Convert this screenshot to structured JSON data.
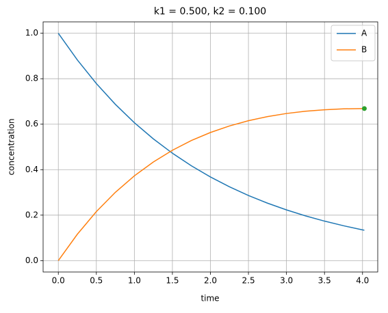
{
  "chart_data": {
    "type": "line",
    "title": "k1 = 0.500, k2 = 0.100",
    "x_label": "time",
    "y_label": "concentration",
    "x": [
      0,
      0.25,
      0.5,
      0.75,
      1.0,
      1.25,
      1.5,
      1.75,
      2.0,
      2.25,
      2.5,
      2.75,
      3.0,
      3.25,
      3.5,
      3.75,
      4.0,
      4.024
    ],
    "series": [
      {
        "name": "A",
        "color": "#1f77b4",
        "values": [
          1,
          0.8825,
          0.7788,
          0.6873,
          0.6065,
          0.5353,
          0.4724,
          0.4169,
          0.3679,
          0.3247,
          0.2865,
          0.2528,
          0.2231,
          0.1969,
          0.1738,
          0.1534,
          0.1353,
          0.1337
        ]
      },
      {
        "name": "B",
        "color": "#ff7f0e",
        "values": [
          0,
          0.116,
          0.2155,
          0.3005,
          0.3729,
          0.434,
          0.4854,
          0.5283,
          0.5635,
          0.5922,
          0.6154,
          0.6335,
          0.6471,
          0.657,
          0.6636,
          0.6674,
          0.6688,
          0.6688
        ]
      }
    ],
    "points": [
      {
        "x": 4.024,
        "y": 0.6688,
        "color": "#2ca02c"
      }
    ],
    "xlim": [
      -0.2,
      4.2
    ],
    "ylim": [
      -0.05,
      1.05
    ],
    "xticks": [
      {
        "value": 0,
        "label": "0.0"
      },
      0.5,
      {
        "value": 1,
        "label": "1.0"
      },
      1.5,
      {
        "value": 2,
        "label": "2.0"
      },
      2.5,
      {
        "value": 3,
        "label": "3.0"
      },
      3.5,
      {
        "value": 4,
        "label": "4.0"
      }
    ],
    "yticks": [
      {
        "value": 0,
        "label": "0.0"
      },
      0.2,
      0.4,
      0.6,
      0.8,
      {
        "value": 1,
        "label": "1.0"
      }
    ],
    "grid": true,
    "legend": "upper-right"
  }
}
